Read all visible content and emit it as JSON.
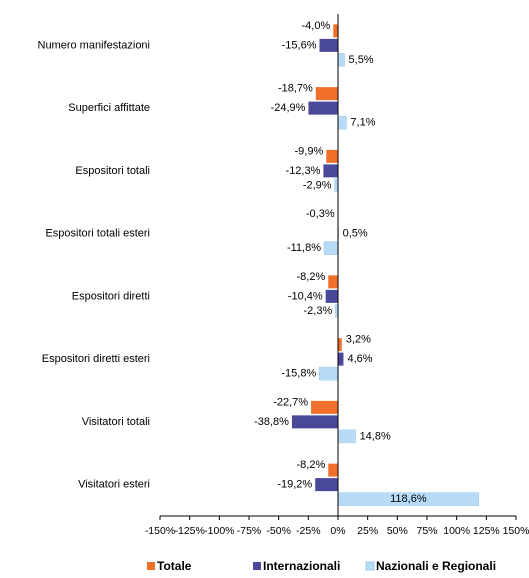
{
  "chart_data": {
    "type": "hbar",
    "categories": [
      "Numero manifestazioni",
      "Superfici affittate",
      "Espositori totali",
      "Espositori totali esteri",
      "Espositori diretti",
      "Espositori diretti esteri",
      "Visitatori totali",
      "Visitatori esteri"
    ],
    "series": [
      {
        "name": "Totale",
        "color": "#f0702a",
        "values": [
          -4.0,
          -18.7,
          -9.9,
          -0.3,
          -8.2,
          3.2,
          -22.7,
          -8.2
        ],
        "value_labels": [
          "-4,0%",
          "-18,7%",
          "-9,9%",
          "-0,3%",
          "-8,2%",
          "3,2%",
          "-22,7%",
          "-8,2%"
        ]
      },
      {
        "name": "Internazionali",
        "color": "#4a4898",
        "values": [
          -15.6,
          -24.9,
          -12.3,
          0.5,
          -10.4,
          4.6,
          -38.8,
          -19.2
        ],
        "value_labels": [
          "-15,6%",
          "-24,9%",
          "-12,3%",
          "0,5%",
          "-10,4%",
          "4,6%",
          "-38,8%",
          "-19,2%"
        ]
      },
      {
        "name": "Nazionali e Regionali",
        "color": "#b8dcf8",
        "values": [
          5.5,
          7.1,
          -2.9,
          -11.8,
          -2.3,
          -15.8,
          14.8,
          118.6
        ],
        "value_labels": [
          "5,5%",
          "7,1%",
          "-2,9%",
          "-11,8%",
          "-2,3%",
          "-15,8%",
          "14,8%",
          "118,6%"
        ]
      }
    ],
    "xlim": [
      -150,
      150
    ],
    "xticks": [
      {
        "value": -150,
        "label": "-150%"
      },
      {
        "value": -125,
        "label": "-125%"
      },
      {
        "value": -100,
        "label": "-100%"
      },
      {
        "value": -75,
        "label": "-75%"
      },
      {
        "value": -50,
        "label": "-50%"
      },
      {
        "value": -25,
        "label": "-25%"
      },
      {
        "value": 0,
        "label": "0%"
      },
      {
        "value": 25,
        "label": "25%"
      },
      {
        "value": 50,
        "label": "50%"
      },
      {
        "value": 75,
        "label": "75%"
      },
      {
        "value": 100,
        "label": "100%"
      },
      {
        "value": 125,
        "label": "125%"
      },
      {
        "value": 150,
        "label": "150%"
      }
    ],
    "legend": "bottom"
  }
}
